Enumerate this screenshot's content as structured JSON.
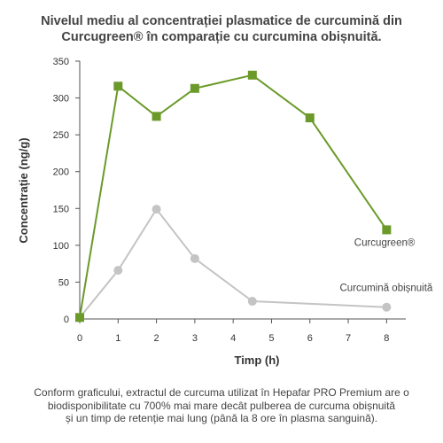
{
  "chart_data": {
    "type": "line",
    "title_lines": [
      "Nivelul mediu al concentrației plasmatice de curcumină din",
      "Curcugreen® în comparație cu curcumina obișnuită."
    ],
    "xlabel": "Timp (h)",
    "ylabel": "Concentrație (ng/g)",
    "xlim": [
      0,
      8.5
    ],
    "ylim": [
      0,
      350
    ],
    "xticks": [
      0,
      1,
      2,
      3,
      4,
      5,
      6,
      7,
      8
    ],
    "yticks": [
      0,
      50,
      100,
      150,
      200,
      250,
      300,
      350
    ],
    "grid": false,
    "series": [
      {
        "name": "Curcugreen®",
        "color": "#6b9a2a",
        "marker": "square",
        "x": [
          0,
          1,
          2,
          3,
          4.5,
          6,
          8
        ],
        "y": [
          2,
          316,
          275,
          313,
          331,
          273,
          121
        ]
      },
      {
        "name": "Curcumină obișnuită",
        "color": "#c4c4c4",
        "marker": "circle",
        "x": [
          0,
          1,
          2,
          3,
          4.5,
          8
        ],
        "y": [
          2,
          66,
          149,
          82,
          24,
          16
        ]
      }
    ]
  },
  "footnote_lines": [
    "Conform graficului, extractul de curcuma utilizat în Hepafar PRO Premium are o",
    "biodisponibilitate cu 700% mai mare decât pulberea de curcuma obișnuită",
    "și un timp de retenție mai lung (până la 8 ore în plasma sanguină)."
  ]
}
